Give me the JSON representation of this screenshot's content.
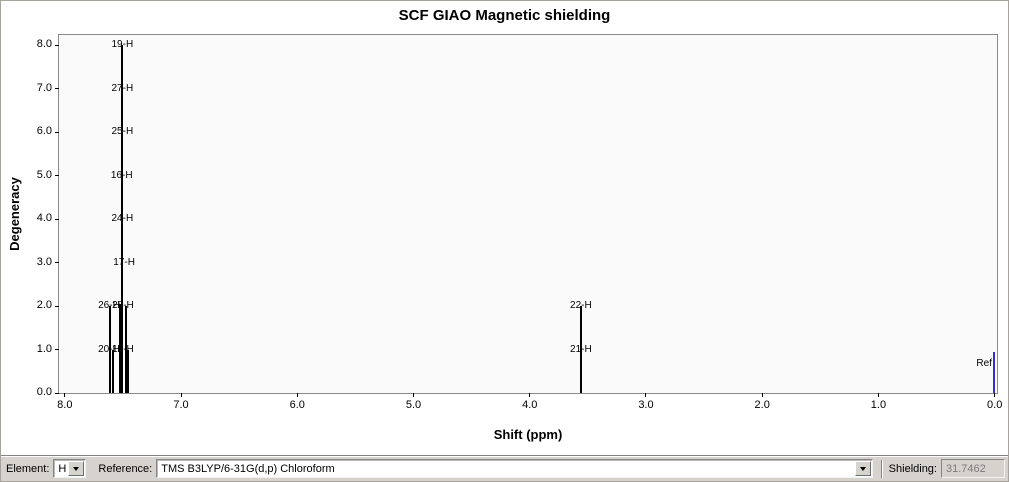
{
  "chart_data": {
    "type": "bar",
    "subtype": "nmr-stick-spectrum",
    "title": "SCF GIAO Magnetic shielding",
    "xlabel": "Shift (ppm)",
    "ylabel": "Degeneracy",
    "x_axis_reversed": true,
    "xlim": [
      8.05,
      -0.02
    ],
    "ylim": [
      0,
      8.23
    ],
    "x_ticks": [
      8.0,
      7.0,
      6.0,
      5.0,
      4.0,
      3.0,
      2.0,
      1.0,
      0.0
    ],
    "y_ticks": [
      0.0,
      1.0,
      2.0,
      3.0,
      4.0,
      5.0,
      6.0,
      7.0,
      8.0
    ],
    "grid": false,
    "peak_color": "#000000",
    "reference_color": "#3333cc",
    "lines": [
      {
        "shift": 7.615,
        "height": 2.0,
        "color": "#000000"
      },
      {
        "shift": 7.585,
        "height": 1.0,
        "color": "#000000"
      },
      {
        "shift": 7.525,
        "height": 2.05,
        "color": "#000000"
      },
      {
        "shift": 7.505,
        "height": 8.0,
        "color": "#000000"
      },
      {
        "shift": 7.475,
        "height": 2.0,
        "color": "#000000"
      },
      {
        "shift": 7.455,
        "height": 1.0,
        "color": "#000000"
      },
      {
        "shift": 3.56,
        "height": 2.0,
        "color": "#000000"
      },
      {
        "shift": 0.005,
        "height": 0.95,
        "color": "#3333cc",
        "name": "reference"
      }
    ],
    "labels": [
      {
        "text": "19-H",
        "shift": 7.505,
        "y": 8.0
      },
      {
        "text": "27-H",
        "shift": 7.505,
        "y": 7.0
      },
      {
        "text": "25-H",
        "shift": 7.505,
        "y": 6.0
      },
      {
        "text": "16-H",
        "shift": 7.51,
        "y": 5.0
      },
      {
        "text": "24-H",
        "shift": 7.505,
        "y": 4.0
      },
      {
        "text": "17-H",
        "shift": 7.49,
        "y": 3.0
      },
      {
        "text": "26-H",
        "shift": 7.62,
        "y": 2.0
      },
      {
        "text": "28-H",
        "shift": 7.5,
        "y": 2.0
      },
      {
        "text": "20-H",
        "shift": 7.62,
        "y": 1.0
      },
      {
        "text": "18-H",
        "shift": 7.5,
        "y": 1.0
      },
      {
        "text": "22-H",
        "shift": 3.56,
        "y": 2.0
      },
      {
        "text": "21-H",
        "shift": 3.56,
        "y": 1.0
      },
      {
        "text": "Ref",
        "shift": 0.09,
        "y": 0.66
      }
    ]
  },
  "controls": {
    "element_label": "Element:",
    "element_value": "H",
    "reference_label": "Reference:",
    "reference_value": "TMS B3LYP/6-31G(d,p) Chloroform",
    "shielding_label": "Shielding:",
    "shielding_value": "31.7462"
  }
}
